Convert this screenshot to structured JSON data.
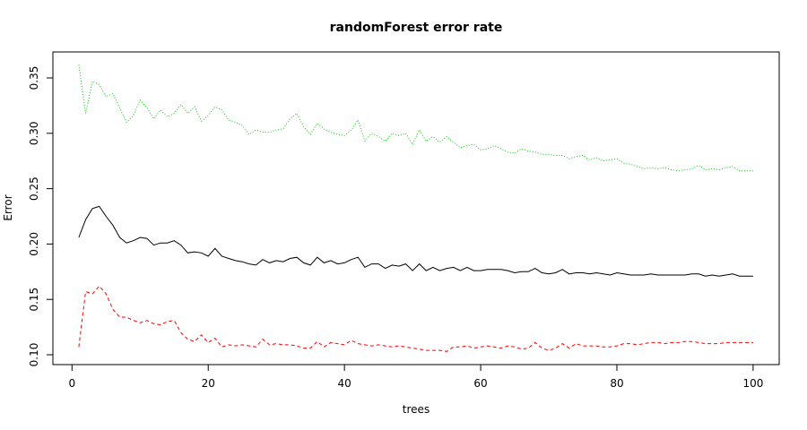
{
  "chart_data": {
    "type": "line",
    "title": "randomForest error rate",
    "xlabel": "trees",
    "ylabel": "Error",
    "xlim": [
      1,
      100
    ],
    "ylim": [
      0.1,
      0.365
    ],
    "x_ticks": [
      0,
      20,
      40,
      60,
      80,
      100
    ],
    "y_ticks": [
      0.1,
      0.15,
      0.2,
      0.25,
      0.3,
      0.35
    ],
    "x_tick_labels": [
      "0",
      "20",
      "40",
      "60",
      "80",
      "100"
    ],
    "y_tick_labels": [
      "0.10",
      "0.15",
      "0.20",
      "0.25",
      "0.30",
      "0.35"
    ],
    "grid": false,
    "legend": "none",
    "series": [
      {
        "color": "#000000",
        "line_style": "solid",
        "values": [
          0.206,
          0.222,
          0.232,
          0.234,
          0.225,
          0.217,
          0.206,
          0.201,
          0.203,
          0.206,
          0.205,
          0.199,
          0.201,
          0.201,
          0.203,
          0.199,
          0.192,
          0.193,
          0.192,
          0.189,
          0.196,
          0.189,
          0.187,
          0.185,
          0.184,
          0.182,
          0.181,
          0.186,
          0.183,
          0.185,
          0.184,
          0.187,
          0.188,
          0.183,
          0.181,
          0.188,
          0.183,
          0.185,
          0.182,
          0.183,
          0.186,
          0.188,
          0.179,
          0.182,
          0.182,
          0.178,
          0.181,
          0.18,
          0.182,
          0.176,
          0.182,
          0.176,
          0.179,
          0.176,
          0.178,
          0.179,
          0.176,
          0.179,
          0.176,
          0.176,
          0.177,
          0.177,
          0.177,
          0.176,
          0.174,
          0.175,
          0.175,
          0.178,
          0.174,
          0.173,
          0.174,
          0.177,
          0.173,
          0.174,
          0.174,
          0.173,
          0.174,
          0.173,
          0.172,
          0.174,
          0.173,
          0.172,
          0.172,
          0.172,
          0.173,
          0.172,
          0.172,
          0.172,
          0.172,
          0.172,
          0.173,
          0.173,
          0.171,
          0.172,
          0.171,
          0.172,
          0.173,
          0.171,
          0.171,
          0.171
        ]
      },
      {
        "color": "#ff0000",
        "line_style": "dashed",
        "values": [
          0.107,
          0.157,
          0.155,
          0.162,
          0.155,
          0.141,
          0.134,
          0.134,
          0.131,
          0.129,
          0.131,
          0.128,
          0.127,
          0.13,
          0.131,
          0.12,
          0.114,
          0.112,
          0.118,
          0.111,
          0.115,
          0.107,
          0.109,
          0.108,
          0.109,
          0.108,
          0.107,
          0.114,
          0.109,
          0.11,
          0.109,
          0.109,
          0.108,
          0.106,
          0.106,
          0.112,
          0.107,
          0.111,
          0.11,
          0.109,
          0.113,
          0.11,
          0.109,
          0.108,
          0.109,
          0.108,
          0.107,
          0.108,
          0.107,
          0.106,
          0.105,
          0.104,
          0.104,
          0.104,
          0.103,
          0.107,
          0.107,
          0.108,
          0.106,
          0.107,
          0.108,
          0.107,
          0.106,
          0.108,
          0.107,
          0.105,
          0.106,
          0.111,
          0.106,
          0.104,
          0.106,
          0.11,
          0.106,
          0.11,
          0.108,
          0.108,
          0.108,
          0.107,
          0.107,
          0.108,
          0.11,
          0.11,
          0.109,
          0.11,
          0.111,
          0.111,
          0.11,
          0.111,
          0.111,
          0.112,
          0.112,
          0.111,
          0.11,
          0.11,
          0.11,
          0.111,
          0.111,
          0.111,
          0.111,
          0.111
        ]
      },
      {
        "color": "#00cc00",
        "line_style": "dotted",
        "values": [
          0.362,
          0.318,
          0.347,
          0.344,
          0.333,
          0.336,
          0.323,
          0.31,
          0.316,
          0.33,
          0.323,
          0.313,
          0.321,
          0.315,
          0.318,
          0.326,
          0.318,
          0.324,
          0.311,
          0.316,
          0.324,
          0.321,
          0.312,
          0.31,
          0.307,
          0.299,
          0.303,
          0.301,
          0.301,
          0.303,
          0.304,
          0.313,
          0.318,
          0.306,
          0.299,
          0.309,
          0.304,
          0.301,
          0.299,
          0.298,
          0.303,
          0.312,
          0.293,
          0.3,
          0.297,
          0.293,
          0.3,
          0.298,
          0.3,
          0.29,
          0.303,
          0.293,
          0.297,
          0.292,
          0.297,
          0.292,
          0.287,
          0.289,
          0.29,
          0.285,
          0.286,
          0.289,
          0.286,
          0.283,
          0.282,
          0.286,
          0.284,
          0.283,
          0.281,
          0.281,
          0.28,
          0.28,
          0.277,
          0.279,
          0.28,
          0.276,
          0.278,
          0.275,
          0.276,
          0.277,
          0.273,
          0.272,
          0.27,
          0.268,
          0.269,
          0.268,
          0.269,
          0.267,
          0.266,
          0.267,
          0.268,
          0.271,
          0.267,
          0.268,
          0.267,
          0.269,
          0.27,
          0.266,
          0.266,
          0.266
        ]
      }
    ]
  }
}
